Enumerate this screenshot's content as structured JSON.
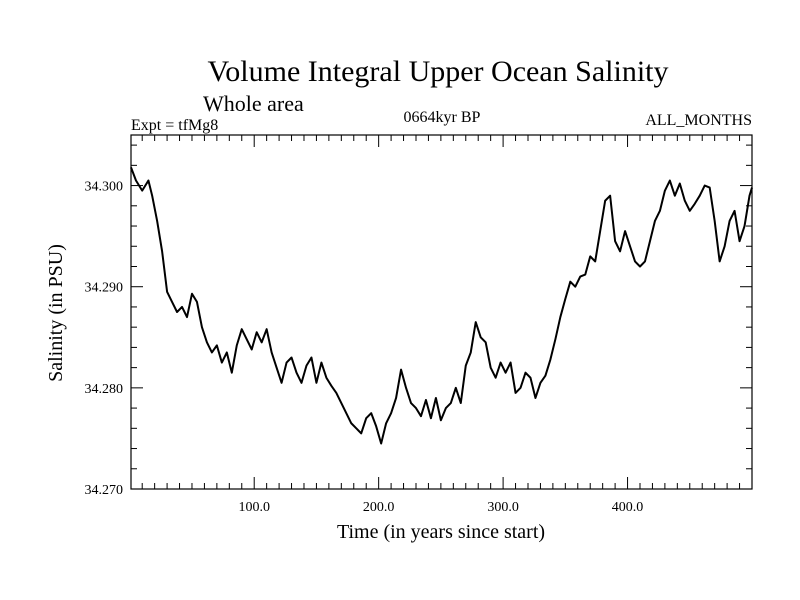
{
  "chart_data": {
    "type": "line",
    "title": "Volume Integral Upper Ocean Salinity",
    "subtitle": "Whole area",
    "left_label": "Expt = tfMg8",
    "center_label": "0664kyr BP",
    "right_label": "ALL_MONTHS",
    "xlabel": "Time (in years since start)",
    "ylabel": "Salinity (in PSU)",
    "xlim": [
      1,
      500
    ],
    "ylim": [
      34.27,
      34.305
    ],
    "x_ticks": [
      100,
      200,
      300,
      400
    ],
    "x_tick_labels": [
      "100.0",
      "200.0",
      "300.0",
      "400.0"
    ],
    "y_ticks": [
      34.27,
      34.28,
      34.29,
      34.3
    ],
    "y_tick_labels": [
      "34.270",
      "34.280",
      "34.290",
      "34.300"
    ],
    "grid": false,
    "series": [
      {
        "name": "Salinity",
        "x": [
          1,
          5,
          10,
          15,
          18,
          22,
          26,
          30,
          34,
          38,
          42,
          46,
          50,
          54,
          58,
          62,
          66,
          70,
          74,
          78,
          82,
          86,
          90,
          94,
          98,
          102,
          106,
          110,
          114,
          118,
          122,
          126,
          130,
          134,
          138,
          142,
          146,
          150,
          154,
          158,
          162,
          166,
          170,
          174,
          178,
          182,
          186,
          190,
          194,
          198,
          202,
          206,
          210,
          214,
          218,
          222,
          226,
          230,
          234,
          238,
          242,
          246,
          250,
          254,
          258,
          262,
          266,
          270,
          274,
          278,
          282,
          286,
          290,
          294,
          298,
          302,
          306,
          310,
          314,
          318,
          322,
          326,
          330,
          334,
          338,
          342,
          346,
          350,
          354,
          358,
          362,
          366,
          370,
          374,
          378,
          382,
          386,
          390,
          394,
          398,
          402,
          406,
          410,
          414,
          418,
          422,
          426,
          430,
          434,
          438,
          442,
          446,
          450,
          454,
          458,
          462,
          466,
          470,
          474,
          478,
          482,
          486,
          490,
          494,
          498,
          500
        ],
        "values": [
          34.3018,
          34.3005,
          34.2995,
          34.3005,
          34.299,
          34.2965,
          34.2935,
          34.2895,
          34.2885,
          34.2875,
          34.288,
          34.287,
          34.2893,
          34.2885,
          34.286,
          34.2845,
          34.2835,
          34.2842,
          34.2825,
          34.2835,
          34.2815,
          34.2842,
          34.2858,
          34.2848,
          34.2838,
          34.2855,
          34.2845,
          34.2858,
          34.2835,
          34.282,
          34.2805,
          34.2825,
          34.283,
          34.2815,
          34.2805,
          34.2822,
          34.283,
          34.2805,
          34.2825,
          34.281,
          34.2802,
          34.2795,
          34.2785,
          34.2775,
          34.2765,
          34.276,
          34.2755,
          34.277,
          34.2775,
          34.2762,
          34.2745,
          34.2765,
          34.2775,
          34.279,
          34.2818,
          34.28,
          34.2785,
          34.278,
          34.2772,
          34.2788,
          34.277,
          34.279,
          34.2768,
          34.278,
          34.2785,
          34.28,
          34.2785,
          34.2822,
          34.2835,
          34.2865,
          34.285,
          34.2845,
          34.282,
          34.281,
          34.2825,
          34.2815,
          34.2825,
          34.2795,
          34.28,
          34.2815,
          34.281,
          34.279,
          34.2805,
          34.2812,
          34.2828,
          34.2848,
          34.287,
          34.2888,
          34.2905,
          34.29,
          34.291,
          34.2912,
          34.293,
          34.2925,
          34.2955,
          34.2985,
          34.299,
          34.2945,
          34.2935,
          34.2955,
          34.294,
          34.2925,
          34.292,
          34.2925,
          34.2945,
          34.2965,
          34.2975,
          34.2995,
          34.3005,
          34.299,
          34.3002,
          34.2985,
          34.2975,
          34.2982,
          34.299,
          34.3,
          34.2998,
          34.2965,
          34.2925,
          34.294,
          34.2965,
          34.2975,
          34.2945,
          34.296,
          34.299,
          34.2998
        ]
      }
    ]
  }
}
